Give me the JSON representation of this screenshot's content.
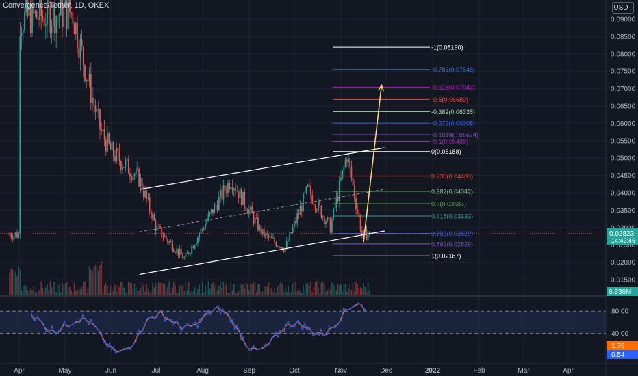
{
  "header": {
    "title": "Convergence/Tether, 1D, OKEX",
    "currency_badge": "USDT"
  },
  "colors": {
    "background": "#131722",
    "up": "#26a69a",
    "down": "#ef5350",
    "grid": "#1f2330",
    "axis_text": "#b2b5be",
    "channel": "#ffffff",
    "projection_arrow": "#ffd180",
    "stoch_k": "#2962ff",
    "stoch_d": "#ff6d00",
    "stoch_band": "#1e2a47"
  },
  "chart_data": {
    "type": "candlestick",
    "title": "Convergence/Tether, 1D, OKEX",
    "price_axis": {
      "ticks": [
        "0.09000",
        "0.08500",
        "0.08000",
        "0.07500",
        "0.07000",
        "0.06500",
        "0.06000",
        "0.05500",
        "0.05000",
        "0.04500",
        "0.04000",
        "0.03500",
        "0.03000",
        "0.02500",
        "0.02000",
        "0.01500"
      ],
      "ylim": [
        0.0105,
        0.0955
      ]
    },
    "time_axis": {
      "ticks": [
        "Apr",
        "May",
        "Jun",
        "Jul",
        "Aug",
        "Sep",
        "Oct",
        "Nov",
        "Dec",
        "2022",
        "Feb",
        "Mar",
        "Apr"
      ]
    },
    "last_price": {
      "value": 0.02823,
      "label": "0.02823",
      "countdown": "14:42:46"
    },
    "volume_label": "6.836M",
    "price_anchors": [
      {
        "date": "Apr 1",
        "value": 0.09
      },
      {
        "date": "May 6",
        "value": 0.092
      },
      {
        "date": "May 15",
        "value": 0.075
      },
      {
        "date": "May 25",
        "value": 0.058
      },
      {
        "date": "Jun 1",
        "value": 0.052
      },
      {
        "date": "Jun 20",
        "value": 0.044
      },
      {
        "date": "Jul 1",
        "value": 0.03
      },
      {
        "date": "Jul 20",
        "value": 0.021
      },
      {
        "date": "Aug 20",
        "value": 0.044
      },
      {
        "date": "Sep 10",
        "value": 0.028
      },
      {
        "date": "Sep 25",
        "value": 0.024
      },
      {
        "date": "Oct 10",
        "value": 0.041
      },
      {
        "date": "Oct 25",
        "value": 0.03
      },
      {
        "date": "Nov 5",
        "value": 0.051
      },
      {
        "date": "Nov 15",
        "value": 0.028
      }
    ],
    "fibonacci_levels": [
      {
        "label": "-1(0.08190)",
        "value": 0.0819,
        "color": "#ffffff"
      },
      {
        "label": "-0.786(0.07548)",
        "value": 0.07548,
        "color": "#3f6fd1"
      },
      {
        "label": "-0.618(0.07043)",
        "value": 0.07043,
        "color": "#c313c9"
      },
      {
        "label": "-0.5(0.06689)",
        "value": 0.06689,
        "color": "#f44336"
      },
      {
        "label": "-0.382(0.06335)",
        "value": 0.06335,
        "color": "#a5d6a7"
      },
      {
        "label": "-0.272(0.06005)",
        "value": 0.06005,
        "color": "#2962ff"
      },
      {
        "label": "-0.1618(0.05674)",
        "value": 0.05674,
        "color": "#7e57c2"
      },
      {
        "label": "-0.1(0.05488)",
        "value": 0.05488,
        "color": "#9c27b0"
      },
      {
        "label": "0(0.05188)",
        "value": 0.05188,
        "color": "#ffffff"
      },
      {
        "label": "0.236(0.04480)",
        "value": 0.0448,
        "color": "#f44336"
      },
      {
        "label": "0.382(0.04042)",
        "value": 0.04042,
        "color": "#81c784"
      },
      {
        "label": "0.5(0.03687)",
        "value": 0.03687,
        "color": "#4caf50"
      },
      {
        "label": "0.618(0.03333)",
        "value": 0.03333,
        "color": "#26a69a"
      },
      {
        "label": "0.786(0.02829)",
        "value": 0.02829,
        "color": "#2962ff"
      },
      {
        "label": "0.886(0.02529)",
        "value": 0.02529,
        "color": "#7e57c2"
      },
      {
        "label": "1(0.02187)",
        "value": 0.02187,
        "color": "#ffffff"
      }
    ],
    "channel": {
      "upper": [
        {
          "date": "Jun 20",
          "value": 0.041
        },
        {
          "date": "Nov 30",
          "value": 0.053
        }
      ],
      "lower": [
        {
          "date": "Jun 20",
          "value": 0.0165
        },
        {
          "date": "Nov 30",
          "value": 0.029
        }
      ]
    },
    "projection_arrow": {
      "from": {
        "date": "Nov 16",
        "value": 0.0258
      },
      "to": {
        "date": "Nov 28",
        "value": 0.071
      }
    },
    "stochastic": {
      "ticks": [
        "80.00",
        "40.00"
      ],
      "levels": [
        80,
        40
      ],
      "k_value": "1.76",
      "d_value": "0.54"
    }
  }
}
